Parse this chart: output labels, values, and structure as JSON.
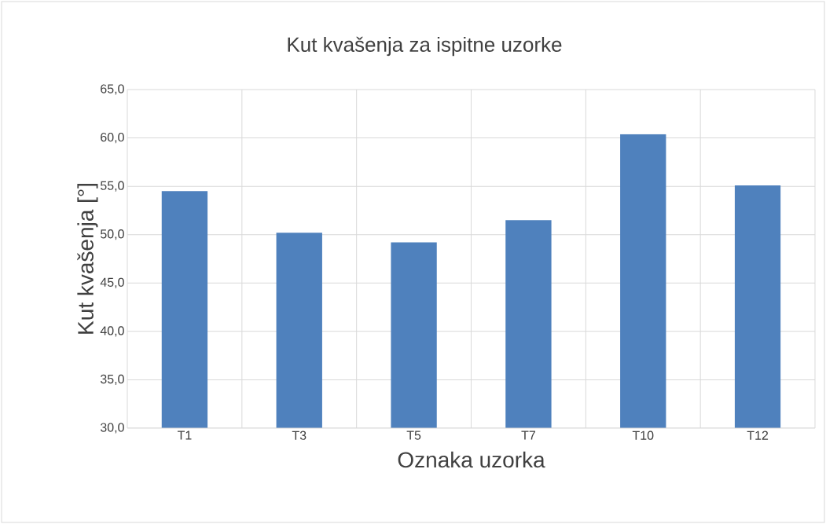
{
  "chart_data": {
    "type": "bar",
    "title": "Kut kvašenja za ispitne uzorke",
    "xlabel": "Oznaka uzorka",
    "ylabel": "Kut kvašenja [°]",
    "categories": [
      "T1",
      "T3",
      "T5",
      "T7",
      "T10",
      "T12"
    ],
    "values": [
      54.5,
      50.2,
      49.2,
      51.5,
      60.4,
      55.1
    ],
    "color": "#4f81bd",
    "ylim": [
      30,
      65
    ],
    "yticks": [
      {
        "value": 30,
        "label": "30,0"
      },
      {
        "value": 35,
        "label": "35,0"
      },
      {
        "value": 40,
        "label": "40,0"
      },
      {
        "value": 45,
        "label": "45,0"
      },
      {
        "value": 50,
        "label": "50,0"
      },
      {
        "value": 55,
        "label": "55,0"
      },
      {
        "value": 60,
        "label": "60,0"
      },
      {
        "value": 65,
        "label": "65,0"
      }
    ],
    "grid": true
  }
}
